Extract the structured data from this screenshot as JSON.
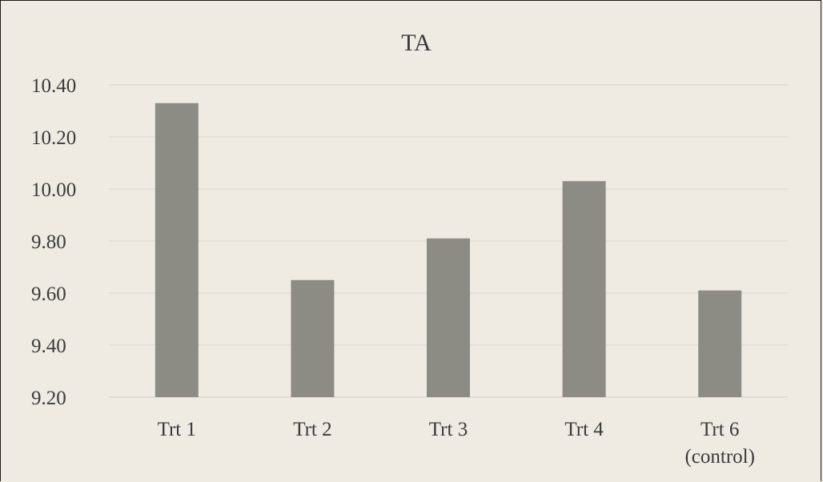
{
  "chart_data": {
    "type": "bar",
    "title": "TA",
    "xlabel": "",
    "ylabel": "",
    "categories": [
      "Trt 1",
      "Trt 2",
      "Trt 3",
      "Trt 4",
      "Trt 6 (control)"
    ],
    "category_lines": [
      [
        "Trt 1"
      ],
      [
        "Trt 2"
      ],
      [
        "Trt 3"
      ],
      [
        "Trt 4"
      ],
      [
        "Trt 6",
        "(control)"
      ]
    ],
    "values": [
      10.33,
      9.65,
      9.81,
      10.03,
      9.61
    ],
    "ylim": [
      9.2,
      10.4
    ],
    "yticks": [
      9.2,
      9.4,
      9.6,
      9.8,
      10.0,
      10.2,
      10.4
    ],
    "ytick_labels": [
      "9.20",
      "9.40",
      "9.60",
      "9.80",
      "10.00",
      "10.20",
      "10.40"
    ],
    "grid": true,
    "legend": "none",
    "colors": {
      "bar": "#8c8c85",
      "grid": "#d9d6cf",
      "background": "#efebe3",
      "text": "#3a3a3a"
    }
  }
}
